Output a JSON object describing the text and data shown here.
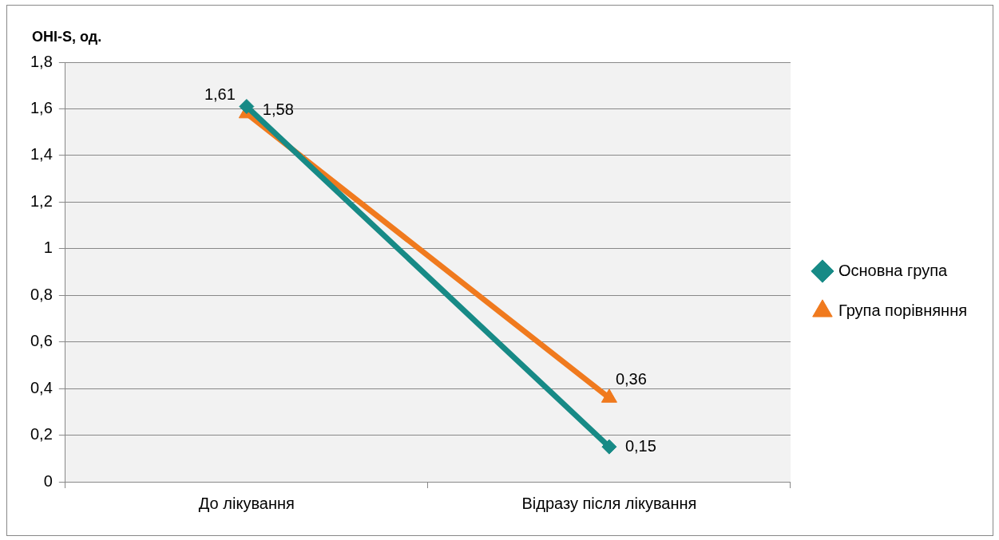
{
  "chart_data": {
    "type": "line",
    "ylabel": "OHI-S, од.",
    "categories": [
      "До лікування",
      "Відразу після лікування"
    ],
    "series": [
      {
        "name": "Основна група",
        "color": "#178a86",
        "values": [
          1.61,
          0.15
        ],
        "value_labels": [
          "1,61",
          "0,15"
        ],
        "marker": "diamond"
      },
      {
        "name": "Група порівняння",
        "color": "#f07a1e",
        "values": [
          1.58,
          0.36
        ],
        "value_labels": [
          "1,58",
          "0,36"
        ],
        "marker": "triangle"
      }
    ],
    "ylim": [
      0,
      1.8
    ],
    "yticks": [
      0,
      {
        "value": 0.2,
        "label": "0,2"
      },
      {
        "value": 0.4,
        "label": "0,4"
      },
      {
        "value": 0.6,
        "label": "0,6"
      },
      {
        "value": 0.8,
        "label": "0,8"
      },
      1,
      {
        "value": 1.2,
        "label": "1,2"
      },
      {
        "value": 1.4,
        "label": "1,4"
      },
      {
        "value": 1.6,
        "label": "1,6"
      },
      {
        "value": 1.8,
        "label": "1,8"
      }
    ],
    "grid": "y",
    "legend": "right"
  }
}
